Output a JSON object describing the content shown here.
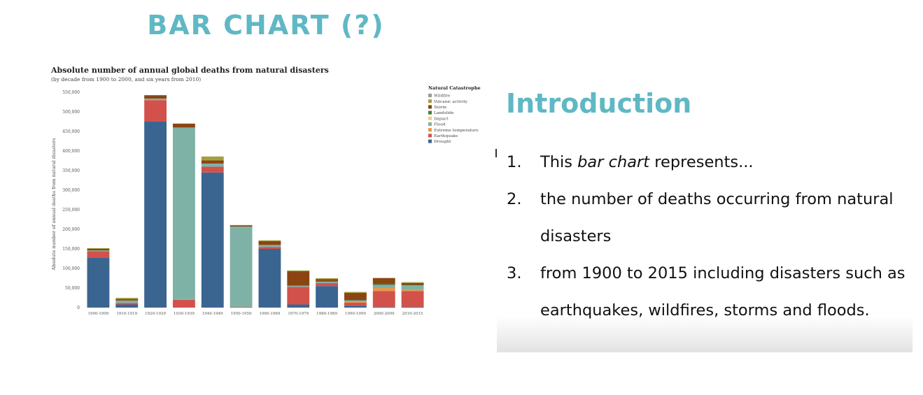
{
  "slide": {
    "title": "BAR CHART (?)"
  },
  "introduction": {
    "title": "Introduction",
    "items": [
      {
        "number": "1.",
        "text_before": "This ",
        "emphasis": "bar chart",
        "text_after": " represents..."
      },
      {
        "number": "2.",
        "text_before": "the number of deaths occurring from natural disasters",
        "emphasis": "",
        "text_after": ""
      },
      {
        "number": "3.",
        "text_before": "from 1900 to 2015 including disasters such as earthquakes, wildfires, storms and floods.",
        "emphasis": "",
        "text_after": ""
      }
    ]
  },
  "chart_data": {
    "type": "bar",
    "stacked": true,
    "title": "Absolute number of annual global deaths from natural disasters",
    "subtitle": "(by decade from 1900 to 2000, and six years from 2010)",
    "ylabel": "Absolute number of annual deaths from natural disasters",
    "xlabel": "",
    "ylim": [
      0,
      550000
    ],
    "yticks": [
      0,
      50000,
      100000,
      150000,
      200000,
      250000,
      300000,
      350000,
      400000,
      450000,
      500000,
      550000
    ],
    "ytick_labels": [
      "0",
      "50,000",
      "100,000",
      "150,000",
      "200,000",
      "250,000",
      "300,000",
      "350,000",
      "400,000",
      "450,000",
      "500,000",
      "550,000"
    ],
    "grid": false,
    "legend": {
      "title": "Natural Catastrophe",
      "position": "right"
    },
    "categories": [
      "1900-1909",
      "1910-1919",
      "1920-1929",
      "1930-1939",
      "1940-1949",
      "1950-1959",
      "1960-1969",
      "1970-1979",
      "1980-1989",
      "1990-1999",
      "2000-2009",
      "2010-2015"
    ],
    "series": [
      {
        "name": "Drought",
        "color": "#3a6591",
        "values": [
          128000,
          8000,
          475000,
          0,
          345000,
          0,
          150000,
          8000,
          55000,
          5000,
          2000,
          2000
        ]
      },
      {
        "name": "Earthquake",
        "color": "#d2524b",
        "values": [
          16000,
          4000,
          55000,
          20000,
          15000,
          2000,
          5000,
          45000,
          8000,
          8000,
          40000,
          40000
        ]
      },
      {
        "name": "Extreme temperature",
        "color": "#e8974a",
        "values": [
          0,
          0,
          0,
          0,
          0,
          0,
          0,
          0,
          0,
          2000,
          8000,
          3000
        ]
      },
      {
        "name": "Flood",
        "color": "#7fb2a7",
        "values": [
          2000,
          6000,
          4000,
          440000,
          8000,
          205000,
          5000,
          3000,
          3000,
          3000,
          8000,
          12000
        ]
      },
      {
        "name": "Impact",
        "color": "#efcf7a",
        "values": [
          0,
          0,
          0,
          0,
          0,
          0,
          0,
          0,
          0,
          0,
          0,
          0
        ]
      },
      {
        "name": "Landslide",
        "color": "#3e7d45",
        "values": [
          0,
          0,
          0,
          0,
          0,
          0,
          0,
          0,
          2000,
          1000,
          2000,
          1000
        ]
      },
      {
        "name": "Storm",
        "color": "#8b4513",
        "values": [
          4000,
          4000,
          8000,
          10000,
          8000,
          3000,
          10000,
          37000,
          5000,
          19000,
          15000,
          5000
        ]
      },
      {
        "name": "Volcanic activity",
        "color": "#a3a040",
        "values": [
          2000,
          3000,
          1000,
          0,
          10000,
          1000,
          2000,
          2000,
          2000,
          2000,
          1000,
          2000
        ]
      },
      {
        "name": "Wildfire",
        "color": "#9a9a9a",
        "values": [
          0,
          0,
          0,
          0,
          0,
          0,
          0,
          0,
          0,
          0,
          0,
          0
        ]
      }
    ]
  }
}
